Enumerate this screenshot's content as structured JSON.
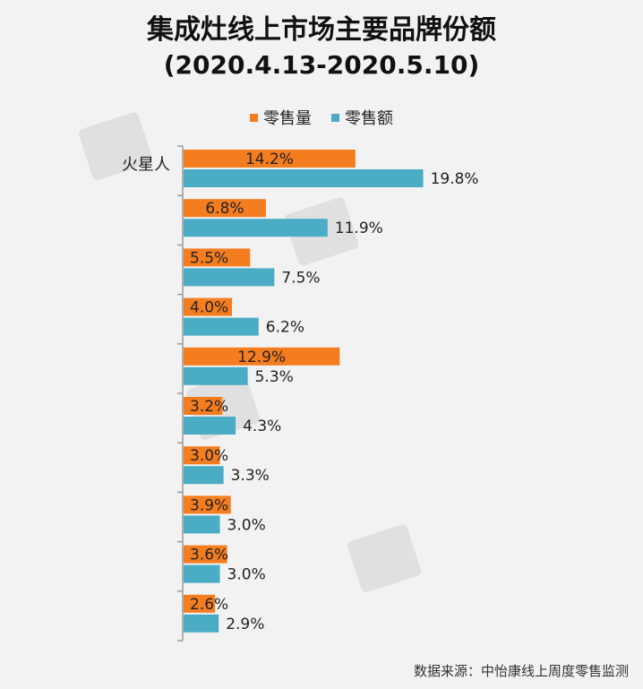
{
  "title": "集成灶线上市场主要品牌份额",
  "subtitle": "(2020.4.13-2020.5.10)",
  "source": "数据来源：中怡康线上周度零售监测",
  "colors": {
    "volume": "#f47d20",
    "value": "#4bacc6",
    "axis": "#9a9a9a"
  },
  "chart_data": {
    "type": "bar",
    "orientation": "horizontal",
    "categories": [
      "火星人",
      "",
      "",
      "",
      "",
      "",
      "",
      "",
      "",
      ""
    ],
    "series": [
      {
        "name": "零售量",
        "values": [
          14.2,
          6.8,
          5.5,
          4.0,
          12.9,
          3.2,
          3.0,
          3.9,
          3.6,
          2.6
        ]
      },
      {
        "name": "零售额",
        "values": [
          19.8,
          11.9,
          7.5,
          6.2,
          5.3,
          4.3,
          3.3,
          3.0,
          3.0,
          2.9
        ]
      }
    ],
    "value_labels": {
      "volume": [
        "14.2%",
        "6.8%",
        "5.5%",
        "4.0%",
        "12.9%",
        "3.2%",
        "3.0%",
        "3.9%",
        "3.6%",
        "2.6%"
      ],
      "value": [
        "19.8%",
        "11.9%",
        "7.5%",
        "6.2%",
        "5.3%",
        "4.3%",
        "3.3%",
        "3.0%",
        "3.0%",
        "2.9%"
      ]
    },
    "xlim": [
      0,
      37
    ],
    "unit": "%",
    "grid": false,
    "legend_position": "top"
  }
}
